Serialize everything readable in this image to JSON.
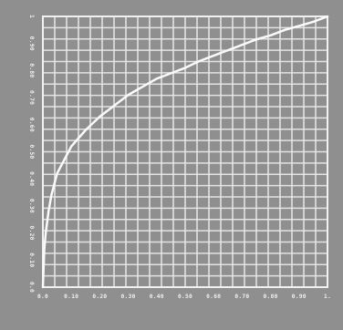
{
  "chart_data": {
    "type": "line",
    "title": "",
    "xlabel": "",
    "ylabel": "",
    "xlim": [
      0,
      1
    ],
    "ylim": [
      0,
      1
    ],
    "grid": true,
    "x_ticks": [
      "0.0",
      "0.10",
      "0.20",
      "0.30",
      "0.40",
      "0.50",
      "0.60",
      "0.70",
      "0.80",
      "0.90",
      "1."
    ],
    "y_ticks": [
      "0.0",
      "0.10",
      "0.20",
      "0.30",
      "0.40",
      "0.50",
      "0.60",
      "0.70",
      "0.80",
      "0.90",
      "1"
    ],
    "series": [
      {
        "x": [
          0,
          0.005,
          0.01,
          0.02,
          0.03,
          0.05,
          0.075,
          0.1,
          0.15,
          0.2,
          0.25,
          0.3,
          0.35,
          0.4,
          0.45,
          0.5,
          0.55,
          0.6,
          0.65,
          0.7,
          0.75,
          0.8,
          0.85,
          0.9,
          0.95,
          1.0
        ],
        "y": [
          0,
          0.14,
          0.2,
          0.28,
          0.34,
          0.42,
          0.47,
          0.52,
          0.58,
          0.63,
          0.67,
          0.71,
          0.74,
          0.77,
          0.79,
          0.81,
          0.835,
          0.855,
          0.875,
          0.895,
          0.915,
          0.93,
          0.95,
          0.965,
          0.98,
          1.0
        ]
      }
    ]
  }
}
